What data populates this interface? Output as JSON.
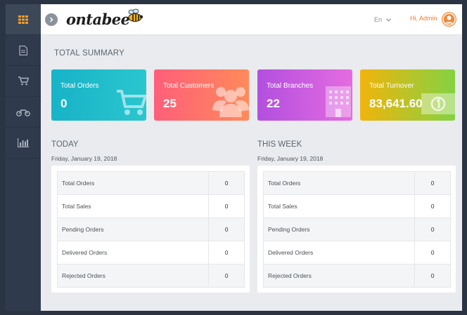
{
  "brand": {
    "name": "ontabee"
  },
  "header": {
    "language": "En",
    "greeting": "Hi, Admin"
  },
  "sidebar": {
    "items": [
      {
        "icon": "grid-icon"
      },
      {
        "icon": "document-icon"
      },
      {
        "icon": "cart-icon"
      },
      {
        "icon": "motorbike-icon"
      },
      {
        "icon": "bar-chart-icon"
      }
    ]
  },
  "summary": {
    "title": "TOTAL SUMMARY",
    "cards": [
      {
        "label": "Total Orders",
        "value": "0",
        "icon": "cart-icon",
        "color": "#17b3c7"
      },
      {
        "label": "Total Customers",
        "value": "25",
        "icon": "users-icon",
        "color": "#ff6b6b"
      },
      {
        "label": "Total Branches",
        "value": "22",
        "icon": "building-icon",
        "color": "#c25ae0"
      },
      {
        "label": "Total Turnover",
        "value": "83,641.60",
        "icon": "money-icon",
        "color": "#b9c62a"
      }
    ]
  },
  "today": {
    "title": "TODAY",
    "date": "Friday, January 19, 2018",
    "rows": [
      {
        "label": "Total Orders",
        "value": "0"
      },
      {
        "label": "Total Sales",
        "value": "0"
      },
      {
        "label": "Pending Orders",
        "value": "0"
      },
      {
        "label": "Delivered Orders",
        "value": "0"
      },
      {
        "label": "Rejected Orders",
        "value": "0"
      }
    ]
  },
  "week": {
    "title": "THIS WEEK",
    "date": "Friday, January 19, 2018",
    "rows": [
      {
        "label": "Total Orders",
        "value": "0"
      },
      {
        "label": "Total Sales",
        "value": "0"
      },
      {
        "label": "Pending Orders",
        "value": "0"
      },
      {
        "label": "Delivered Orders",
        "value": "0"
      },
      {
        "label": "Rejected Orders",
        "value": "0"
      }
    ]
  }
}
